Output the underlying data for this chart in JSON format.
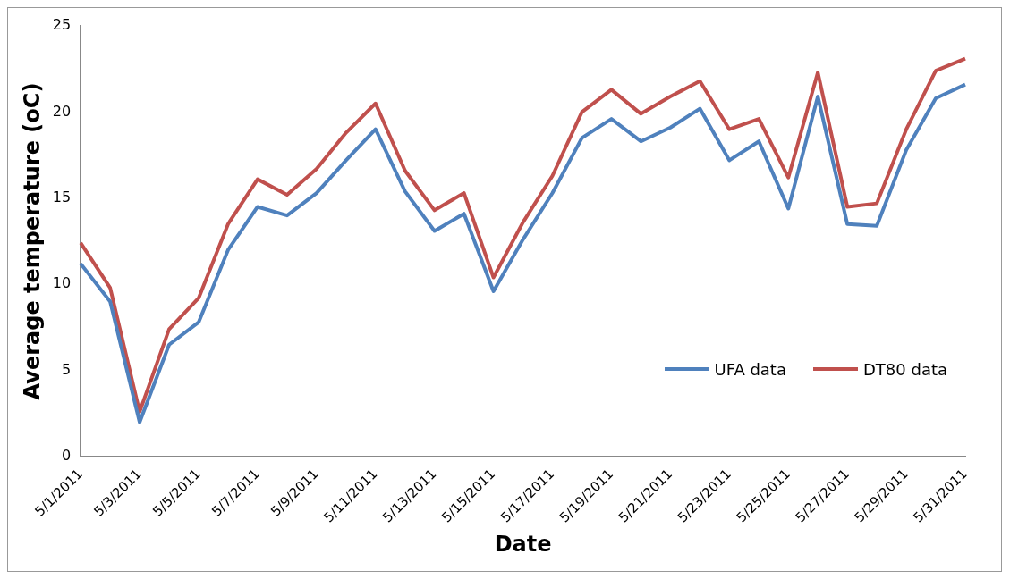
{
  "chart_data": {
    "type": "line",
    "xlabel": "Date",
    "ylabel": "Average temperature (oC)",
    "categories": [
      "5/1/2011",
      null,
      "5/3/2011",
      null,
      "5/5/2011",
      null,
      "5/7/2011",
      null,
      "5/9/2011",
      null,
      "5/11/2011",
      null,
      "5/13/2011",
      null,
      "5/15/2011",
      null,
      "5/17/2011",
      null,
      "5/19/2011",
      null,
      "5/21/2011",
      null,
      "5/23/2011",
      null,
      "5/25/2011",
      null,
      "5/27/2011",
      null,
      "5/29/2011",
      null,
      "5/31/2011"
    ],
    "series": [
      {
        "name": "UFA data",
        "color": "#4f81bd",
        "values": [
          11.2,
          9.0,
          2.0,
          6.5,
          7.8,
          12.0,
          14.5,
          14.0,
          15.3,
          17.2,
          19.0,
          15.4,
          13.1,
          14.1,
          9.6,
          12.6,
          15.3,
          18.5,
          19.6,
          18.3,
          19.1,
          20.2,
          17.2,
          18.3,
          14.4,
          20.9,
          13.5,
          13.4,
          17.8,
          20.8,
          21.6
        ]
      },
      {
        "name": "DT80 data",
        "color": "#c0504d",
        "values": [
          12.4,
          9.8,
          2.6,
          7.4,
          9.2,
          13.5,
          16.1,
          15.2,
          16.7,
          18.8,
          20.5,
          16.6,
          14.3,
          15.3,
          10.4,
          13.6,
          16.3,
          20.0,
          21.3,
          19.9,
          20.9,
          21.8,
          19.0,
          19.6,
          16.2,
          22.3,
          14.5,
          14.7,
          19.0,
          22.4,
          23.1
        ]
      }
    ],
    "ylim": [
      0,
      25
    ],
    "yticks": [
      0,
      5,
      10,
      15,
      20,
      25
    ],
    "grid": false,
    "legend": "right",
    "line_style": "solid"
  }
}
